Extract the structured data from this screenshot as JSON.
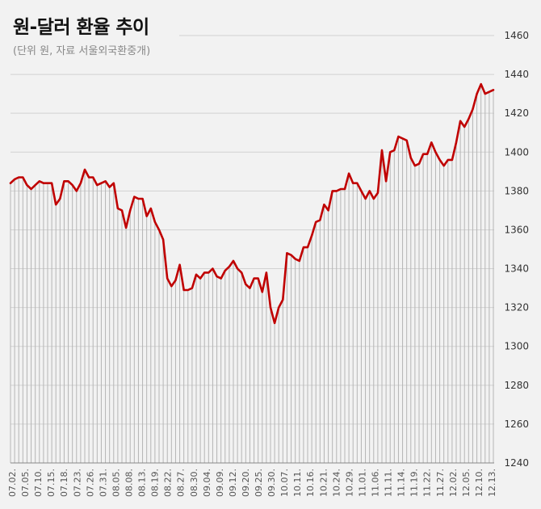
{
  "chart_data": {
    "type": "line",
    "title": "원-달러 환율 추이",
    "subtitle": "(단위 원, 자료 서울외국환중개)",
    "ylim": [
      1240,
      1460
    ],
    "yticks": [
      1240,
      1260,
      1280,
      1300,
      1320,
      1340,
      1360,
      1380,
      1400,
      1420,
      1440,
      1460
    ],
    "xtick_labels": [
      "07.02.",
      "07.05.",
      "07.10.",
      "07.15.",
      "07.18.",
      "07.23.",
      "07.26.",
      "07.31.",
      "08.05.",
      "08.08.",
      "08.13.",
      "08.19.",
      "08.22.",
      "08.27.",
      "08.30.",
      "09.04.",
      "09.09.",
      "09.12.",
      "09.20.",
      "09.25.",
      "09.30.",
      "10.07.",
      "10.11.",
      "10.16.",
      "10.21.",
      "10.24.",
      "10.29.",
      "11.01.",
      "11.06.",
      "11.11.",
      "11.14.",
      "11.19.",
      "11.22.",
      "11.27.",
      "12.02.",
      "12.05.",
      "12.10.",
      "12.13."
    ],
    "grid": true,
    "line_color": "#c00000",
    "bar_color": "#b5b5b5",
    "values": [
      1384,
      1386,
      1387,
      1387,
      1383,
      1381,
      1383,
      1385,
      1384,
      1384,
      1384,
      1373,
      1376,
      1385,
      1385,
      1383,
      1380,
      1384,
      1391,
      1387,
      1387,
      1383,
      1384,
      1385,
      1382,
      1384,
      1371,
      1370,
      1361,
      1370,
      1377,
      1376,
      1376,
      1367,
      1371,
      1364,
      1360,
      1355,
      1335,
      1331,
      1334,
      1342,
      1329,
      1329,
      1330,
      1337,
      1335,
      1338,
      1338,
      1340,
      1336,
      1335,
      1339,
      1341,
      1344,
      1340,
      1338,
      1332,
      1330,
      1335,
      1335,
      1328,
      1338,
      1320,
      1312,
      1320,
      1324,
      1348,
      1347,
      1345,
      1344,
      1351,
      1351,
      1357,
      1364,
      1365,
      1373,
      1370,
      1380,
      1380,
      1381,
      1381,
      1389,
      1384,
      1384,
      1380,
      1376,
      1380,
      1376,
      1379,
      1401,
      1385,
      1400,
      1401,
      1408,
      1407,
      1406,
      1397,
      1393,
      1394,
      1399,
      1399,
      1405,
      1400,
      1396,
      1393,
      1396,
      1396,
      1405,
      1416,
      1413,
      1417,
      1422,
      1430,
      1435,
      1430,
      1431,
      1432
    ]
  }
}
